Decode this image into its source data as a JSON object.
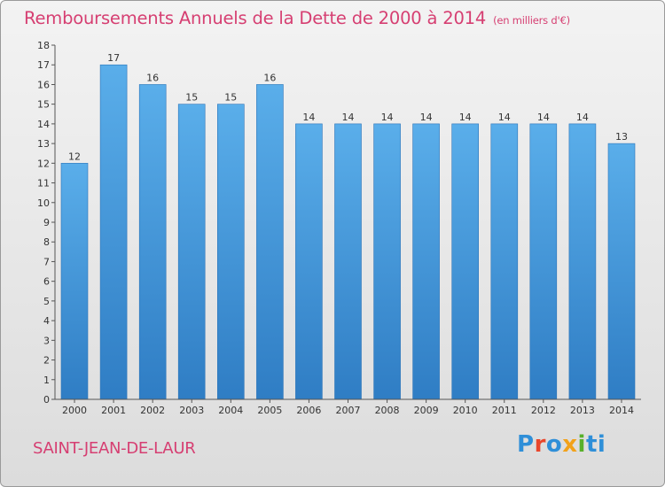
{
  "header": {
    "title": "Remboursements Annuels de la Dette de 2000 à 2014",
    "unit_note": "(en milliers d'€)"
  },
  "footer": {
    "commune": "SAINT-JEAN-DE-LAUR",
    "brand": "Proxiti"
  },
  "colors": {
    "title": "#d63f72",
    "bar_top": "#5aaeea",
    "bar_bottom": "#2f7dc4",
    "brand": [
      "#2f8fd8",
      "#e9462b",
      "#2f8fd8",
      "#f2a21a",
      "#58b02a",
      "#2f8fd8"
    ]
  },
  "chart_data": {
    "type": "bar",
    "title": "Remboursements Annuels de la Dette de 2000 à 2014",
    "subtitle": "(en milliers d'€)",
    "xlabel": "",
    "ylabel": "",
    "categories": [
      "2000",
      "2001",
      "2002",
      "2003",
      "2004",
      "2005",
      "2006",
      "2007",
      "2008",
      "2009",
      "2010",
      "2011",
      "2012",
      "2013",
      "2014"
    ],
    "values": [
      12,
      17,
      16,
      15,
      15,
      16,
      14,
      14,
      14,
      14,
      14,
      14,
      14,
      14,
      13
    ],
    "ylim": [
      0,
      18
    ],
    "yticks": [
      0,
      1,
      2,
      3,
      4,
      5,
      6,
      7,
      8,
      9,
      10,
      11,
      12,
      13,
      14,
      15,
      16,
      17,
      18
    ],
    "grid": false,
    "legend": "none"
  }
}
